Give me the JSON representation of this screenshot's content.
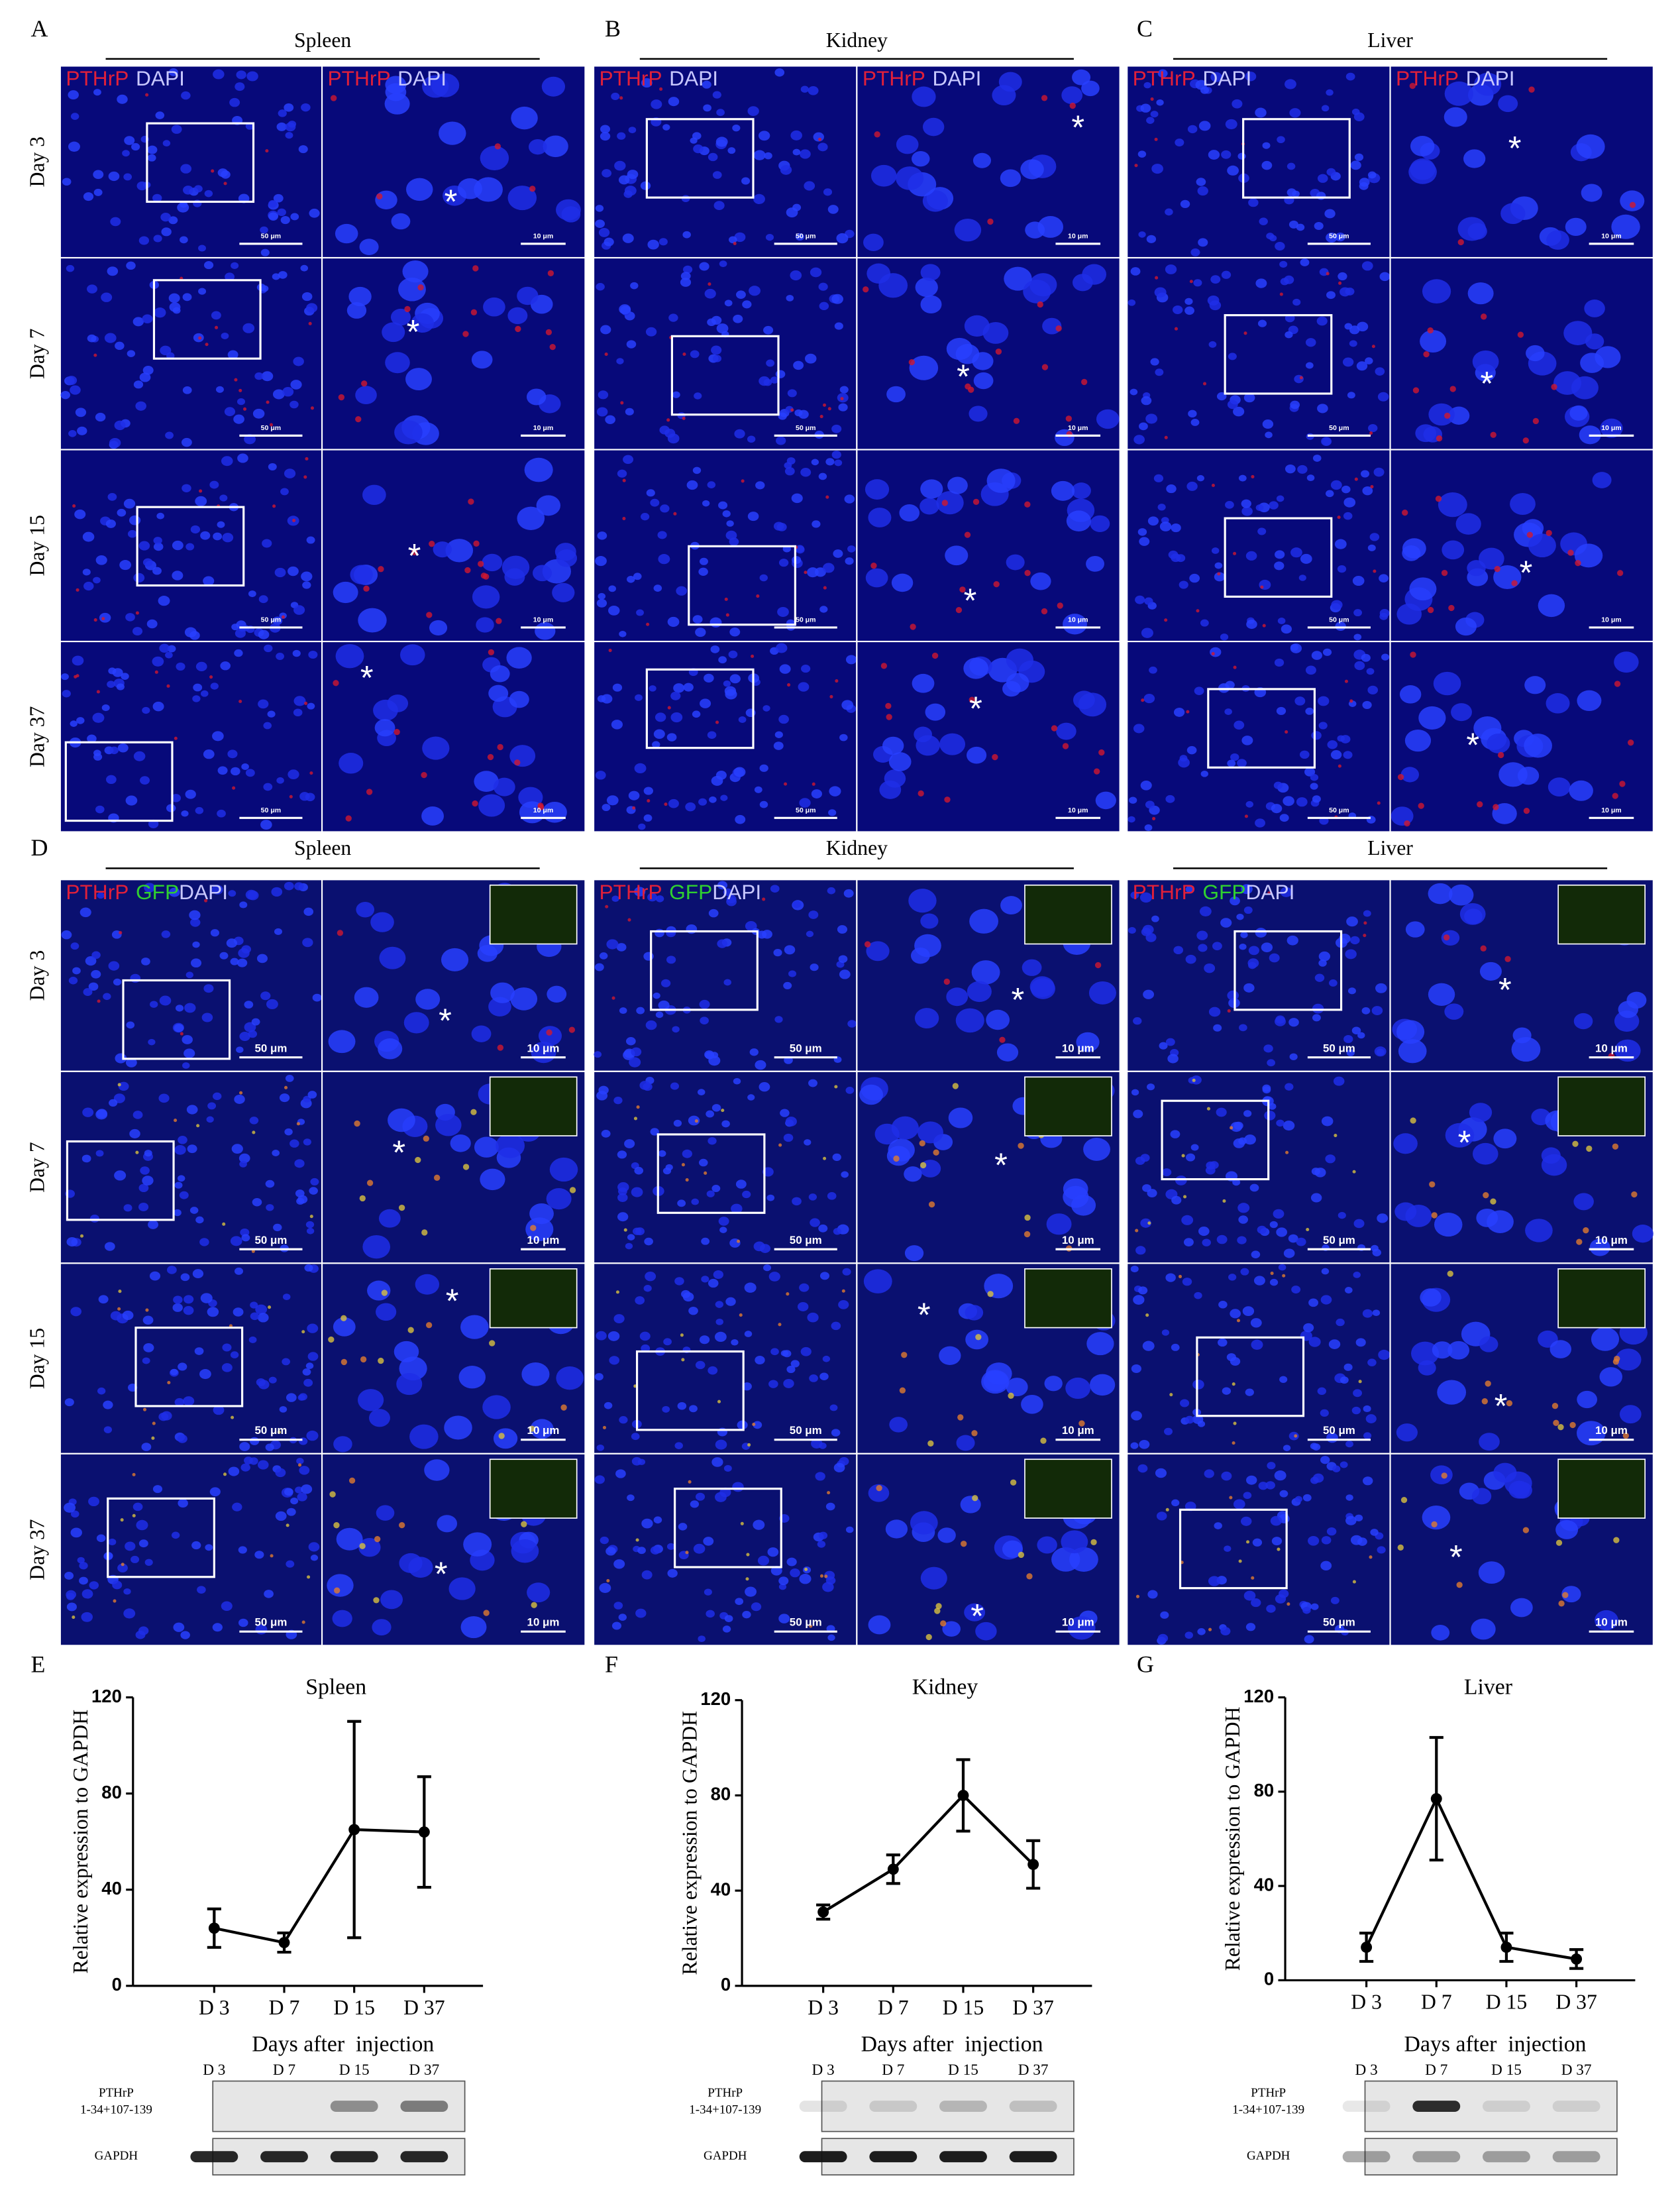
{
  "figure": {
    "panel_letters": [
      "A",
      "B",
      "C",
      "D",
      "E",
      "F",
      "G"
    ],
    "days": [
      "Day 3",
      "Day 7",
      "Day 15",
      "Day 37"
    ],
    "channels": {
      "pthrp": "PTHrP",
      "dapi": "DAPI",
      "gfp": "GFP"
    },
    "scale_bars": [
      "50 μm",
      "10 μm"
    ],
    "asterisk": "*",
    "blot_labels": {
      "target": [
        "PTHrP",
        "1-34+107-139"
      ],
      "control": "GAPDH"
    }
  },
  "chart_data": [
    {
      "type": "line",
      "title": "Spleen",
      "y_label": "Relative expression to GAPDH",
      "x_label": "Days after  injection",
      "categories": [
        "D 3",
        "D 7",
        "D 15",
        "D 37"
      ],
      "values": [
        24,
        18,
        65,
        64
      ],
      "errors": [
        8,
        4,
        45,
        23
      ],
      "color": "#000000",
      "ylim": [
        0,
        120
      ],
      "yticks": [
        0,
        40,
        80,
        120
      ]
    },
    {
      "type": "line",
      "title": "Kidney",
      "y_label": "Relative expression to GAPDH",
      "x_label": "Days after  injection",
      "categories": [
        "D 3",
        "D 7",
        "D 15",
        "D 37"
      ],
      "values": [
        31,
        49,
        80,
        51
      ],
      "errors": [
        3,
        6,
        15,
        10
      ],
      "color": "#000000",
      "ylim": [
        0,
        120
      ],
      "yticks": [
        0,
        40,
        80,
        120
      ]
    },
    {
      "type": "line",
      "title": "Liver",
      "y_label": "Relative expression to GAPDH",
      "x_label": "Days after  injection",
      "categories": [
        "D 3",
        "D 7",
        "D 15",
        "D 37"
      ],
      "values": [
        14,
        77,
        14,
        9
      ],
      "errors": [
        6,
        26,
        6,
        4
      ],
      "color": "#000000",
      "ylim": [
        0,
        120
      ],
      "yticks": [
        0,
        40,
        80,
        120
      ]
    }
  ]
}
